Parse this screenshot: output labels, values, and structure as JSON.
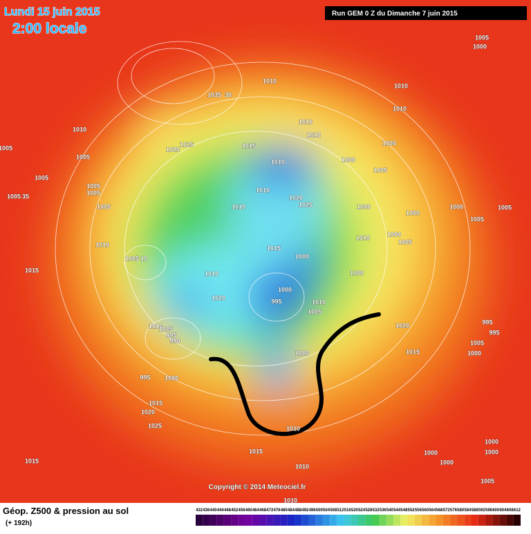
{
  "header": {
    "date": "Lundi 15 juin 2015",
    "time": "2:00 locale",
    "run": "Run GEM 0 Z du Dimanche 7 juin 2015"
  },
  "map": {
    "copyright": "Copyright © 2014 Meteociel.fr",
    "pressure_labels": [
      "1005",
      "1000",
      "1010",
      "1035",
      "30",
      "1010",
      "1010",
      "1010",
      "1010",
      "1010",
      "1005",
      "1005",
      "1025",
      "1020",
      "1015",
      "1010",
      "1000",
      "1000",
      "1005",
      "1005",
      "1005",
      "1005",
      "1005",
      "35",
      "1005",
      "1010",
      "1010",
      "1020",
      "1025",
      "1000",
      "1000",
      "1000",
      "1005",
      "1005",
      "1010",
      "1015",
      "1010",
      "1000",
      "1005",
      "1005",
      "10",
      "1000",
      "1015",
      "1010",
      "1000",
      "1020",
      "1000",
      "995",
      "1010",
      "1005",
      "1020",
      "995",
      "995",
      "1010",
      "1005",
      "995",
      "990",
      "1015",
      "1005",
      "1000",
      "1000",
      "995",
      "1000",
      "1015",
      "1020",
      "1025",
      "1010",
      "1015",
      "1015",
      "1000",
      "1000",
      "1000",
      "1000",
      "1010",
      "1005",
      "1010"
    ]
  },
  "legend": {
    "title": "Géop. Z500 & pression au sol",
    "lead": "(+ 192h)",
    "scale": [
      432,
      436,
      440,
      444,
      448,
      452,
      456,
      460,
      464,
      468,
      472,
      476,
      480,
      484,
      488,
      492,
      496,
      500,
      504,
      508,
      512,
      516,
      520,
      524,
      528,
      532,
      536,
      540,
      544,
      548,
      552,
      556,
      560,
      564,
      568,
      572,
      576,
      580,
      584,
      588,
      592,
      596,
      600,
      604,
      608,
      612
    ]
  }
}
